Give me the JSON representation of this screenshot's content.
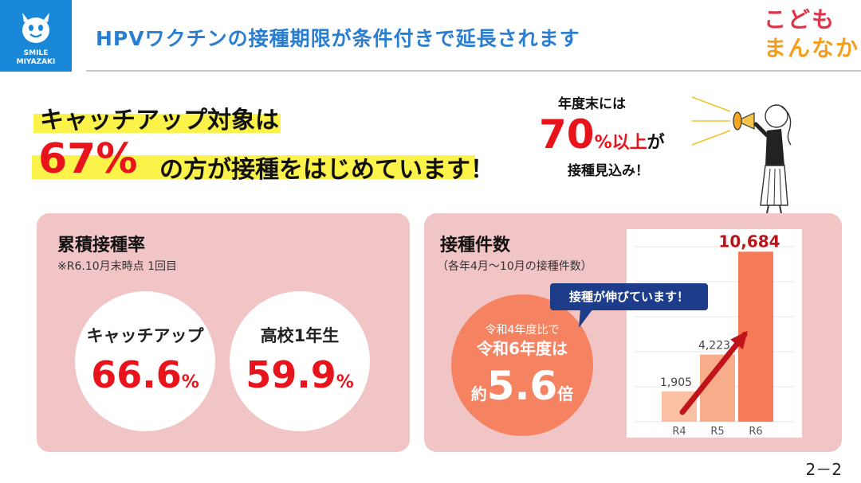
{
  "header": {
    "logo_text_line1": "SMILE",
    "logo_text_line2": "MIYAZAKI",
    "title": "HPVワクチンの接種期限が条件付きで延長されます",
    "brand_line1": "こども",
    "brand_line2": "まんなか"
  },
  "headline": {
    "line1": "キャッチアップ対象は",
    "percent": "67%",
    "line2": "の方が接種をはじめています！"
  },
  "forecast": {
    "line1": "年度末には",
    "big_number": "70",
    "big_suffix": "%以上",
    "ga": "が",
    "line3": "接種見込み！"
  },
  "cumulative": {
    "title": "累積接種率",
    "note": "※R6.10月末時点 1回目",
    "items": [
      {
        "label": "キャッチアップ",
        "value": "66.6",
        "unit": "%"
      },
      {
        "label": "高校1年生",
        "value": "59.9",
        "unit": "%"
      }
    ]
  },
  "counts": {
    "title": "接種件数",
    "note": "（各年4月～10月の接種件数）",
    "bubble": "接種が伸びています！",
    "ratio_small": "令和4年度比で",
    "ratio_mid": "令和6年度は",
    "ratio_pre": "約",
    "ratio_num": "5.6",
    "ratio_post": "倍"
  },
  "chart_data": {
    "type": "bar",
    "categories": [
      "R4",
      "R5",
      "R6"
    ],
    "values": [
      1905,
      4223,
      10684
    ],
    "value_labels": [
      "1,905",
      "4,223",
      "10,684"
    ],
    "ylim": [
      0,
      11000
    ],
    "grid": true,
    "colors": [
      "#f9c0a4",
      "#f8ad8a",
      "#f57a55"
    ],
    "highlight_label_color": "#b8141a",
    "arrow_color": "#c0141a"
  },
  "page": {
    "number": "2－2"
  },
  "colors": {
    "accent_blue": "#2a7ed0",
    "logo_blue": "#1a88d8",
    "highlight_yellow": "#fbf24a",
    "alert_red": "#e8141c",
    "panel_pink": "#f1c4c6",
    "orange": "#f58362",
    "navy": "#1d3d8a"
  }
}
